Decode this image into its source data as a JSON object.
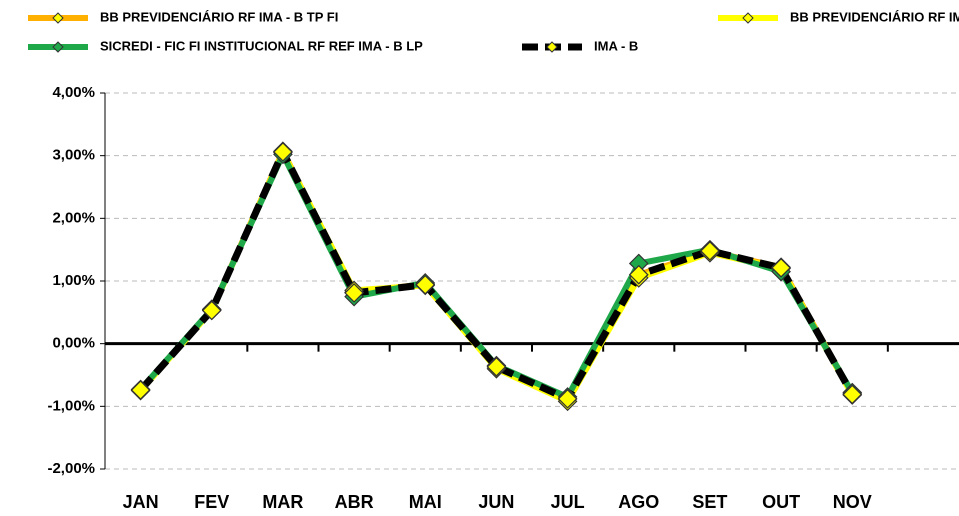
{
  "chart_data": {
    "type": "line",
    "categories": [
      "JAN",
      "FEV",
      "MAR",
      "ABR",
      "MAI",
      "JUN",
      "JUL",
      "AGO",
      "SET",
      "OUT",
      "NOV",
      null
    ],
    "series": [
      {
        "name": "BB PREVIDENCIÁRIO RF IMA - B TP FI",
        "color": "#ffb000",
        "marker_color": "#ffff00",
        "dashed": false,
        "values": [
          -0.74,
          0.54,
          3.07,
          0.82,
          0.95,
          -0.37,
          -0.88,
          1.1,
          1.47,
          1.22,
          -0.8,
          null
        ]
      },
      {
        "name": "BB PREVIDENCIÁRIO RF IMA - B FI",
        "color": "#ffff00",
        "marker_color": "#ffff00",
        "dashed": false,
        "values": [
          -0.75,
          0.53,
          3.05,
          0.85,
          0.93,
          -0.4,
          -0.92,
          1.05,
          1.45,
          1.2,
          -0.82,
          null
        ]
      },
      {
        "name": "SICREDI - FIC FI INSTITUCIONAL RF REF IMA - B LP",
        "color": "#1fa84a",
        "marker_color": "#1fa84a",
        "dashed": false,
        "values": [
          -0.73,
          0.55,
          3.02,
          0.75,
          0.97,
          -0.35,
          -0.85,
          1.28,
          1.5,
          1.15,
          -0.78,
          null
        ]
      },
      {
        "name": "IMA - B",
        "color": "#000000",
        "marker_color": "#ffff00",
        "dashed": true,
        "values": [
          -0.74,
          0.53,
          3.06,
          0.81,
          0.94,
          -0.37,
          -0.88,
          1.1,
          1.48,
          1.21,
          -0.81,
          null
        ]
      }
    ],
    "ylim": [
      -2,
      4
    ],
    "yticks": [
      {
        "value": -2,
        "label": "-2,00%"
      },
      {
        "value": -1,
        "label": "-1,00%"
      },
      {
        "value": 0,
        "label": "0,00%"
      },
      {
        "value": 1,
        "label": "1,00%"
      },
      {
        "value": 2,
        "label": "2,00%"
      },
      {
        "value": 3,
        "label": "3,00%"
      },
      {
        "value": 4,
        "label": "4,00%"
      }
    ],
    "grid": true
  }
}
